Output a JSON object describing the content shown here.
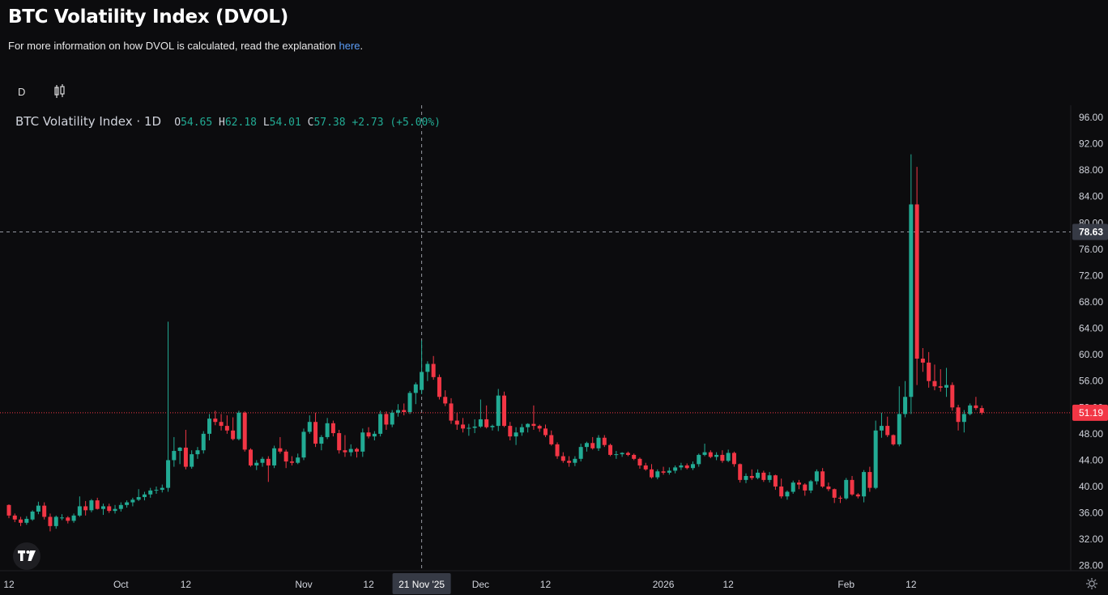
{
  "page": {
    "title": "BTC Volatility Index (DVOL)",
    "subtitle_text": "For more information on how DVOL is calculated, read the explanation ",
    "subtitle_link": "here",
    "subtitle_end": "."
  },
  "toolbar": {
    "interval_label": "D",
    "chart_type_icon": "candlestick-icon"
  },
  "legend": {
    "symbol": "BTC Volatility Index · 1D",
    "o_label": "O",
    "o_value": "54.65",
    "h_label": "H",
    "h_value": "62.18",
    "l_label": "L",
    "l_value": "54.01",
    "c_label": "C",
    "c_value": "57.38",
    "change": "+2.73 (+5.00%)"
  },
  "colors": {
    "background": "#0c0c0e",
    "up": "#22ab94",
    "down": "#f23645",
    "grid": "#1a1a1e",
    "crosshair": "#9598a1",
    "axis_text": "#d1d4dc",
    "last_price": "#f23645"
  },
  "chart_data": {
    "type": "candlestick",
    "title": "BTC Volatility Index (DVOL)",
    "ylim": [
      26,
      98
    ],
    "y_ticks": [
      28,
      32,
      36,
      40,
      44,
      48,
      52,
      56,
      60,
      64,
      68,
      72,
      76,
      80,
      84,
      88,
      92,
      96
    ],
    "y_tick_labels": [
      "28.00",
      "32.00",
      "36.00",
      "40.00",
      "44.00",
      "48.00",
      "52.00",
      "56.00",
      "60.00",
      "64.00",
      "68.00",
      "72.00",
      "76.00",
      "80.00",
      "84.00",
      "88.00",
      "92.00",
      "96.00"
    ],
    "x_tick_labels": [
      {
        "label": "12",
        "index": 0
      },
      {
        "label": "Oct",
        "index": 19
      },
      {
        "label": "12",
        "index": 30
      },
      {
        "label": "Nov",
        "index": 50
      },
      {
        "label": "12",
        "index": 61
      },
      {
        "label": "21 Nov '25",
        "index": 70
      },
      {
        "label": "Dec",
        "index": 80
      },
      {
        "label": "12",
        "index": 91
      },
      {
        "label": "2026",
        "index": 111
      },
      {
        "label": "12",
        "index": 122
      },
      {
        "label": "Feb",
        "index": 142
      },
      {
        "label": "12",
        "index": 153
      }
    ],
    "crosshair": {
      "index": 70,
      "value": 78.63,
      "x_label": "21 Nov '25",
      "y_label": "78.63"
    },
    "last_price": {
      "value": 51.19,
      "label": "51.19"
    },
    "candles": [
      [
        37.2,
        37.3,
        35.2,
        35.6
      ],
      [
        35.6,
        35.9,
        34.6,
        35.0
      ],
      [
        35.0,
        35.4,
        34.0,
        34.5
      ],
      [
        34.5,
        35.5,
        34.2,
        35.1
      ],
      [
        35.0,
        36.4,
        34.8,
        36.2
      ],
      [
        36.2,
        37.7,
        35.8,
        37.1
      ],
      [
        37.1,
        37.6,
        35.0,
        35.4
      ],
      [
        35.4,
        35.9,
        33.2,
        34.0
      ],
      [
        34.0,
        35.6,
        33.6,
        35.4
      ],
      [
        35.2,
        35.8,
        34.9,
        35.3
      ],
      [
        35.3,
        35.5,
        34.4,
        34.8
      ],
      [
        34.8,
        35.9,
        34.5,
        35.6
      ],
      [
        35.6,
        38.5,
        35.4,
        37.0
      ],
      [
        37.0,
        37.8,
        35.6,
        36.4
      ],
      [
        36.4,
        38.1,
        36.1,
        37.9
      ],
      [
        37.9,
        38.3,
        36.5,
        36.6
      ],
      [
        36.6,
        37.4,
        35.7,
        37.0
      ],
      [
        37.0,
        37.4,
        36.0,
        36.3
      ],
      [
        36.3,
        37.2,
        35.9,
        36.6
      ],
      [
        36.6,
        37.6,
        36.2,
        37.2
      ],
      [
        37.2,
        37.9,
        36.8,
        37.6
      ],
      [
        37.6,
        38.3,
        37.0,
        38.0
      ],
      [
        38.0,
        39.6,
        37.8,
        38.4
      ],
      [
        38.4,
        39.2,
        37.9,
        38.8
      ],
      [
        38.8,
        39.8,
        38.3,
        39.4
      ],
      [
        39.4,
        40.0,
        38.9,
        39.5
      ],
      [
        39.5,
        40.3,
        39.1,
        39.8
      ],
      [
        39.8,
        65.0,
        39.2,
        44.0
      ],
      [
        44.0,
        47.5,
        43.0,
        45.4
      ],
      [
        45.4,
        46.0,
        43.4,
        45.9
      ],
      [
        45.9,
        48.6,
        42.6,
        43.0
      ],
      [
        43.0,
        45.5,
        42.7,
        44.9
      ],
      [
        44.9,
        46.0,
        44.2,
        45.5
      ],
      [
        45.5,
        48.4,
        45.0,
        48.0
      ],
      [
        48.0,
        51.0,
        47.0,
        50.3
      ],
      [
        50.3,
        51.5,
        49.3,
        49.8
      ],
      [
        49.8,
        51.0,
        48.5,
        49.2
      ],
      [
        49.2,
        50.8,
        48.0,
        48.5
      ],
      [
        48.5,
        50.5,
        47.0,
        47.2
      ],
      [
        47.2,
        51.5,
        47.0,
        51.2
      ],
      [
        51.2,
        51.4,
        45.3,
        45.6
      ],
      [
        45.6,
        45.8,
        43.0,
        43.2
      ],
      [
        43.2,
        44.0,
        42.5,
        43.6
      ],
      [
        43.6,
        44.5,
        43.0,
        44.2
      ],
      [
        44.2,
        44.6,
        40.7,
        43.2
      ],
      [
        43.2,
        46.2,
        42.8,
        45.8
      ],
      [
        45.8,
        47.5,
        45.0,
        45.3
      ],
      [
        45.3,
        45.6,
        42.8,
        43.8
      ],
      [
        43.8,
        44.6,
        43.2,
        43.6
      ],
      [
        43.6,
        45.0,
        43.4,
        44.4
      ],
      [
        44.4,
        48.8,
        44.0,
        48.3
      ],
      [
        48.3,
        50.8,
        48.0,
        49.8
      ],
      [
        49.8,
        51.2,
        46.0,
        46.5
      ],
      [
        46.5,
        47.8,
        45.5,
        47.5
      ],
      [
        47.5,
        50.4,
        47.2,
        49.6
      ],
      [
        49.6,
        50.0,
        47.6,
        48.1
      ],
      [
        48.1,
        48.6,
        45.0,
        45.5
      ],
      [
        45.5,
        47.8,
        44.5,
        45.2
      ],
      [
        45.2,
        46.4,
        44.6,
        45.7
      ],
      [
        45.7,
        45.9,
        44.4,
        45.3
      ],
      [
        45.3,
        48.8,
        44.5,
        48.2
      ],
      [
        48.2,
        49.0,
        47.3,
        47.6
      ],
      [
        47.6,
        48.4,
        47.0,
        48.0
      ],
      [
        48.0,
        51.5,
        47.6,
        51.0
      ],
      [
        51.0,
        51.4,
        48.6,
        49.4
      ],
      [
        49.4,
        51.6,
        49.0,
        51.2
      ],
      [
        51.2,
        52.5,
        50.6,
        51.6
      ],
      [
        51.6,
        52.6,
        50.8,
        51.3
      ],
      [
        51.3,
        54.5,
        51.0,
        54.2
      ],
      [
        54.2,
        55.8,
        52.5,
        55.5
      ],
      [
        54.65,
        62.18,
        54.01,
        57.38
      ],
      [
        57.4,
        59.0,
        56.0,
        58.6
      ],
      [
        58.6,
        59.8,
        56.2,
        56.6
      ],
      [
        56.6,
        57.0,
        53.2,
        53.6
      ],
      [
        53.6,
        54.6,
        52.2,
        52.6
      ],
      [
        52.6,
        53.4,
        49.5,
        50.0
      ],
      [
        50.0,
        51.2,
        48.6,
        49.4
      ],
      [
        49.4,
        50.4,
        48.2,
        48.8
      ],
      [
        48.8,
        49.5,
        47.7,
        48.9
      ],
      [
        48.9,
        50.2,
        48.1,
        49.1
      ],
      [
        49.1,
        53.2,
        48.9,
        50.2
      ],
      [
        50.2,
        52.3,
        48.8,
        49.0
      ],
      [
        49.0,
        49.4,
        48.5,
        49.2
      ],
      [
        49.2,
        54.8,
        48.4,
        53.8
      ],
      [
        53.8,
        54.4,
        49.0,
        49.2
      ],
      [
        49.2,
        49.8,
        47.0,
        47.6
      ],
      [
        47.6,
        49.0,
        46.3,
        48.2
      ],
      [
        48.2,
        49.5,
        47.7,
        49.0
      ],
      [
        49.0,
        49.6,
        48.2,
        49.5
      ],
      [
        49.5,
        52.3,
        48.6,
        49.2
      ],
      [
        49.2,
        49.4,
        48.3,
        48.8
      ],
      [
        48.8,
        49.4,
        47.5,
        47.8
      ],
      [
        47.8,
        48.5,
        46.2,
        46.4
      ],
      [
        46.4,
        46.7,
        44.2,
        44.6
      ],
      [
        44.6,
        45.2,
        43.6,
        43.9
      ],
      [
        43.9,
        44.6,
        43.0,
        43.6
      ],
      [
        43.6,
        44.6,
        43.1,
        44.2
      ],
      [
        44.2,
        46.5,
        43.8,
        46.0
      ],
      [
        46.0,
        46.8,
        45.3,
        46.6
      ],
      [
        46.6,
        47.5,
        45.6,
        45.8
      ],
      [
        45.8,
        47.8,
        45.4,
        47.4
      ],
      [
        47.4,
        47.8,
        46.0,
        46.3
      ],
      [
        46.3,
        46.5,
        44.6,
        44.8
      ],
      [
        44.8,
        45.4,
        44.2,
        44.9
      ],
      [
        44.9,
        45.2,
        44.5,
        45.1
      ],
      [
        45.1,
        45.3,
        44.6,
        44.8
      ],
      [
        44.8,
        45.0,
        44.0,
        44.2
      ],
      [
        44.2,
        44.4,
        42.7,
        43.2
      ],
      [
        43.2,
        43.6,
        42.4,
        42.6
      ],
      [
        42.6,
        43.4,
        41.2,
        41.4
      ],
      [
        41.4,
        42.6,
        41.1,
        42.3
      ],
      [
        42.3,
        43.0,
        41.8,
        42.1
      ],
      [
        42.1,
        42.9,
        41.8,
        42.4
      ],
      [
        42.4,
        43.2,
        42.0,
        42.9
      ],
      [
        42.9,
        43.6,
        42.5,
        43.2
      ],
      [
        43.2,
        43.5,
        42.6,
        42.8
      ],
      [
        42.8,
        43.8,
        42.5,
        43.4
      ],
      [
        43.4,
        45.0,
        43.0,
        44.8
      ],
      [
        44.8,
        46.5,
        44.6,
        45.2
      ],
      [
        45.2,
        45.5,
        44.3,
        44.5
      ],
      [
        44.5,
        45.2,
        44.0,
        44.8
      ],
      [
        44.8,
        45.5,
        43.6,
        43.9
      ],
      [
        43.9,
        45.6,
        43.7,
        45.1
      ],
      [
        45.1,
        45.3,
        43.0,
        43.4
      ],
      [
        43.4,
        43.5,
        40.6,
        41.0
      ],
      [
        41.0,
        42.0,
        40.5,
        41.6
      ],
      [
        41.6,
        42.6,
        41.0,
        41.3
      ],
      [
        41.3,
        42.6,
        41.1,
        42.1
      ],
      [
        42.1,
        42.4,
        40.7,
        41.0
      ],
      [
        41.0,
        42.2,
        40.6,
        41.7
      ],
      [
        41.7,
        41.8,
        39.5,
        40.0
      ],
      [
        40.0,
        41.2,
        38.2,
        38.5
      ],
      [
        38.5,
        39.4,
        38.0,
        39.2
      ],
      [
        39.2,
        40.9,
        38.9,
        40.6
      ],
      [
        40.6,
        41.0,
        39.6,
        40.3
      ],
      [
        40.3,
        40.5,
        38.6,
        39.4
      ],
      [
        39.4,
        41.0,
        39.0,
        40.8
      ],
      [
        40.8,
        42.6,
        40.3,
        42.3
      ],
      [
        42.3,
        42.8,
        39.8,
        40.0
      ],
      [
        40.0,
        40.6,
        39.3,
        39.6
      ],
      [
        39.6,
        39.7,
        37.5,
        38.3
      ],
      [
        38.3,
        38.6,
        37.5,
        38.2
      ],
      [
        38.2,
        41.3,
        38.0,
        41.0
      ],
      [
        41.0,
        41.6,
        38.6,
        38.8
      ],
      [
        38.8,
        39.0,
        38.2,
        38.5
      ],
      [
        38.5,
        42.5,
        37.6,
        42.2
      ],
      [
        42.2,
        43.0,
        39.2,
        39.8
      ],
      [
        39.8,
        50.0,
        39.6,
        48.5
      ],
      [
        48.5,
        51.2,
        47.4,
        49.2
      ],
      [
        49.2,
        50.6,
        47.5,
        47.8
      ],
      [
        47.8,
        47.9,
        46.2,
        46.4
      ],
      [
        46.4,
        55.2,
        46.1,
        51.0
      ],
      [
        51.0,
        56.0,
        50.5,
        53.6
      ],
      [
        53.6,
        90.4,
        51.0,
        82.8
      ],
      [
        82.8,
        88.5,
        55.4,
        59.4
      ],
      [
        59.4,
        61.0,
        57.4,
        58.8
      ],
      [
        58.8,
        60.4,
        55.0,
        56.0
      ],
      [
        56.0,
        58.5,
        54.6,
        55.2
      ],
      [
        55.2,
        57.8,
        54.4,
        55.0
      ],
      [
        55.0,
        58.0,
        53.6,
        55.4
      ],
      [
        55.4,
        55.8,
        51.5,
        52.0
      ],
      [
        52.0,
        52.4,
        48.5,
        49.8
      ],
      [
        49.8,
        51.6,
        48.2,
        51.0
      ],
      [
        51.0,
        52.6,
        50.8,
        52.3
      ],
      [
        52.3,
        53.6,
        51.6,
        51.9
      ],
      [
        51.9,
        52.3,
        50.9,
        51.19
      ]
    ]
  }
}
